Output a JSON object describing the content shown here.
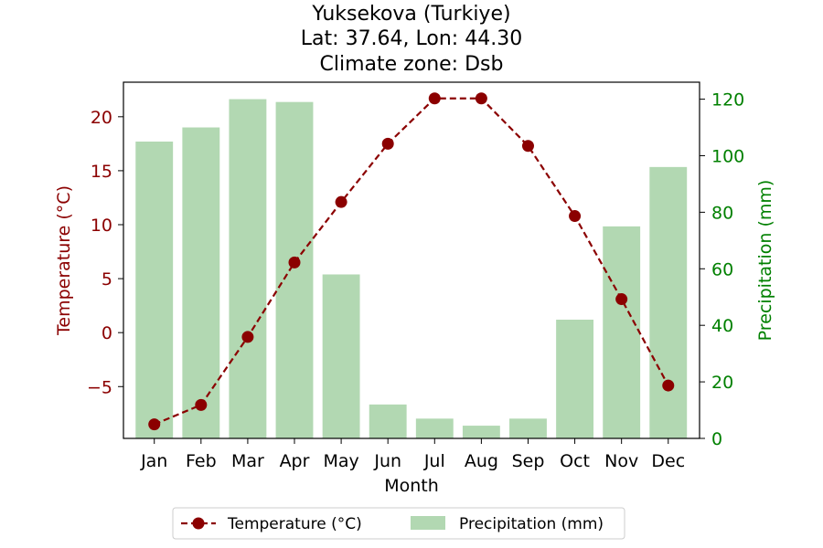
{
  "chart_data": {
    "type": "bar+line",
    "title_lines": [
      "Yuksekova (Turkiye)",
      "Lat: 37.64, Lon: 44.30",
      "Climate zone: Dsb"
    ],
    "xlabel": "Month",
    "ylabel_left": "Temperature (°C)",
    "ylabel_right": "Precipitation (mm)",
    "categories": [
      "Jan",
      "Feb",
      "Mar",
      "Apr",
      "May",
      "Jun",
      "Jul",
      "Aug",
      "Sep",
      "Oct",
      "Nov",
      "Dec"
    ],
    "left_axis": {
      "ylim": [
        -9.8,
        23.2
      ],
      "ticks": [
        -5,
        0,
        5,
        10,
        15,
        20
      ],
      "tick_labels": [
        "−5",
        "0",
        "5",
        "10",
        "15",
        "20"
      ],
      "color": "#8b0000"
    },
    "right_axis": {
      "ylim": [
        0,
        126
      ],
      "ticks": [
        0,
        20,
        40,
        60,
        80,
        100,
        120
      ],
      "tick_labels": [
        "0",
        "20",
        "40",
        "60",
        "80",
        "100",
        "120"
      ],
      "color": "#008000"
    },
    "series": [
      {
        "name": "Temperature (°C)",
        "axis": "left",
        "kind": "line",
        "color": "#8b0000",
        "values": [
          -8.5,
          -6.7,
          -0.4,
          6.5,
          12.1,
          17.5,
          21.7,
          21.7,
          17.3,
          10.8,
          3.1,
          -4.9
        ]
      },
      {
        "name": "Precipitation (mm)",
        "axis": "right",
        "kind": "bar",
        "color": "#b2d8b2",
        "values": [
          105,
          110,
          120,
          119,
          58,
          12,
          7,
          4.5,
          7,
          42,
          75,
          96
        ]
      }
    ],
    "legend": {
      "placement": "bottom-center",
      "entries": [
        "Temperature (°C)",
        "Precipitation (mm)"
      ]
    },
    "grid": false
  }
}
